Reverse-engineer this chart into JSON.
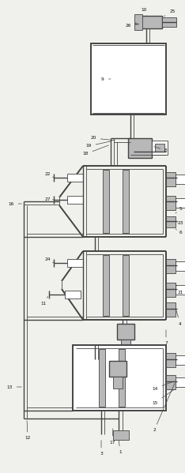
{
  "bg_color": "#f0f0ec",
  "line_color": "#444444",
  "gray_fill": "#b8b8b8",
  "white_fill": "#ffffff",
  "fig_width": 2.34,
  "fig_height": 5.99,
  "dpi": 100
}
